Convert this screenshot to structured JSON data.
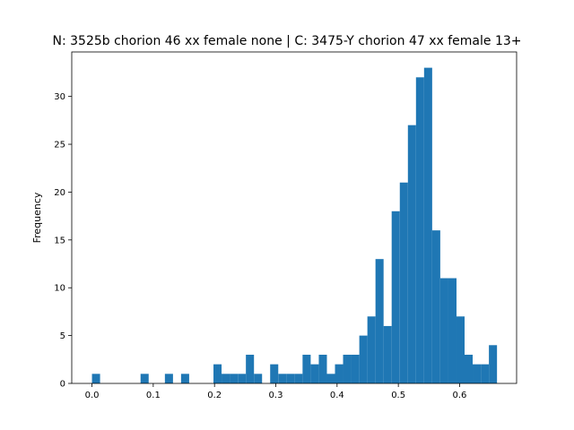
{
  "chart_data": {
    "type": "bar",
    "title": "N: 3525b chorion 46 xx female none | C: 3475-Y chorion 47 xx female 13+",
    "xlabel": "",
    "ylabel": "Frequency",
    "bar_color": "#1f77b4",
    "bin_width": 0.01322,
    "xlim": [
      -0.033,
      0.693
    ],
    "ylim": [
      0,
      34.65
    ],
    "x_ticks": [
      0.0,
      0.1,
      0.2,
      0.3,
      0.4,
      0.5,
      0.6
    ],
    "x_tick_labels": [
      "0.0",
      "0.1",
      "0.2",
      "0.3",
      "0.4",
      "0.5",
      "0.6"
    ],
    "y_ticks": [
      0,
      5,
      10,
      15,
      20,
      25,
      30
    ],
    "y_tick_labels": [
      "0",
      "5",
      "10",
      "15",
      "20",
      "25",
      "30"
    ],
    "x": [
      0.0,
      0.0132,
      0.0264,
      0.0397,
      0.0529,
      0.0661,
      0.0793,
      0.0925,
      0.1058,
      0.119,
      0.1322,
      0.1454,
      0.1586,
      0.1719,
      0.1851,
      0.1983,
      0.2115,
      0.2247,
      0.238,
      0.2512,
      0.2644,
      0.2776,
      0.2908,
      0.3041,
      0.3173,
      0.3305,
      0.3437,
      0.3569,
      0.3702,
      0.3834,
      0.3966,
      0.4098,
      0.423,
      0.4363,
      0.4495,
      0.4627,
      0.4759,
      0.4891,
      0.5024,
      0.5156,
      0.5288,
      0.542,
      0.5552,
      0.5685,
      0.5817,
      0.5949,
      0.6081,
      0.6213,
      0.6346,
      0.6478
    ],
    "values": [
      1,
      0,
      0,
      0,
      0,
      0,
      1,
      0,
      0,
      1,
      0,
      1,
      0,
      0,
      0,
      2,
      1,
      1,
      1,
      3,
      1,
      0,
      2,
      1,
      1,
      1,
      3,
      2,
      3,
      1,
      2,
      3,
      3,
      5,
      7,
      13,
      6,
      18,
      21,
      27,
      32,
      33,
      16,
      11,
      11,
      7,
      3,
      2,
      2,
      4
    ]
  }
}
